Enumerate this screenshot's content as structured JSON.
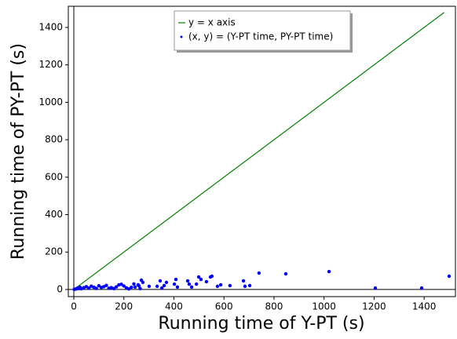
{
  "chart_data": {
    "type": "scatter",
    "xlabel": "Running time of Y-PT (s)",
    "ylabel": "Running time of PY-PT (s)",
    "xlim": [
      -22,
      1525
    ],
    "ylim": [
      -38,
      1513
    ],
    "xticks": [
      0,
      200,
      400,
      600,
      800,
      1000,
      1200,
      1400
    ],
    "yticks": [
      0,
      200,
      400,
      600,
      800,
      1000,
      1200,
      1400
    ],
    "legend": "upper center",
    "series": [
      {
        "name": "y = x axis",
        "type": "line",
        "color": "#008000",
        "x": [
          0,
          1480
        ],
        "values": [
          0,
          1480
        ]
      },
      {
        "name": "(x, y) = (Y-PT time, PY-PT time)",
        "type": "scatter",
        "color": "#0000ff",
        "x": [
          1500,
          1390,
          1205,
          1020,
          847,
          740,
          703,
          684,
          678,
          624,
          587,
          574,
          546,
          552,
          530,
          508,
          490,
          499,
          461,
          471,
          455,
          414,
          408,
          402,
          370,
          361,
          352,
          345,
          333,
          301,
          276,
          270,
          257,
          245,
          150,
          160,
          120,
          100,
          80,
          60,
          40,
          20,
          10,
          5,
          2,
          30,
          70,
          90,
          110,
          130,
          140,
          170,
          180,
          200,
          210,
          230,
          240,
          220,
          190,
          50,
          15,
          25,
          260,
          265
        ],
        "values": [
          71,
          8,
          8,
          96,
          84,
          88,
          21,
          17,
          46,
          21,
          25,
          17,
          67,
          71,
          42,
          54,
          29,
          67,
          29,
          13,
          46,
          13,
          54,
          29,
          38,
          21,
          8,
          46,
          17,
          17,
          38,
          50,
          25,
          13,
          10,
          5,
          15,
          20,
          12,
          8,
          10,
          5,
          3,
          2,
          1,
          4,
          18,
          6,
          11,
          22,
          7,
          14,
          25,
          19,
          9,
          12,
          30,
          3,
          28,
          15,
          8,
          12,
          20,
          5
        ]
      }
    ]
  }
}
